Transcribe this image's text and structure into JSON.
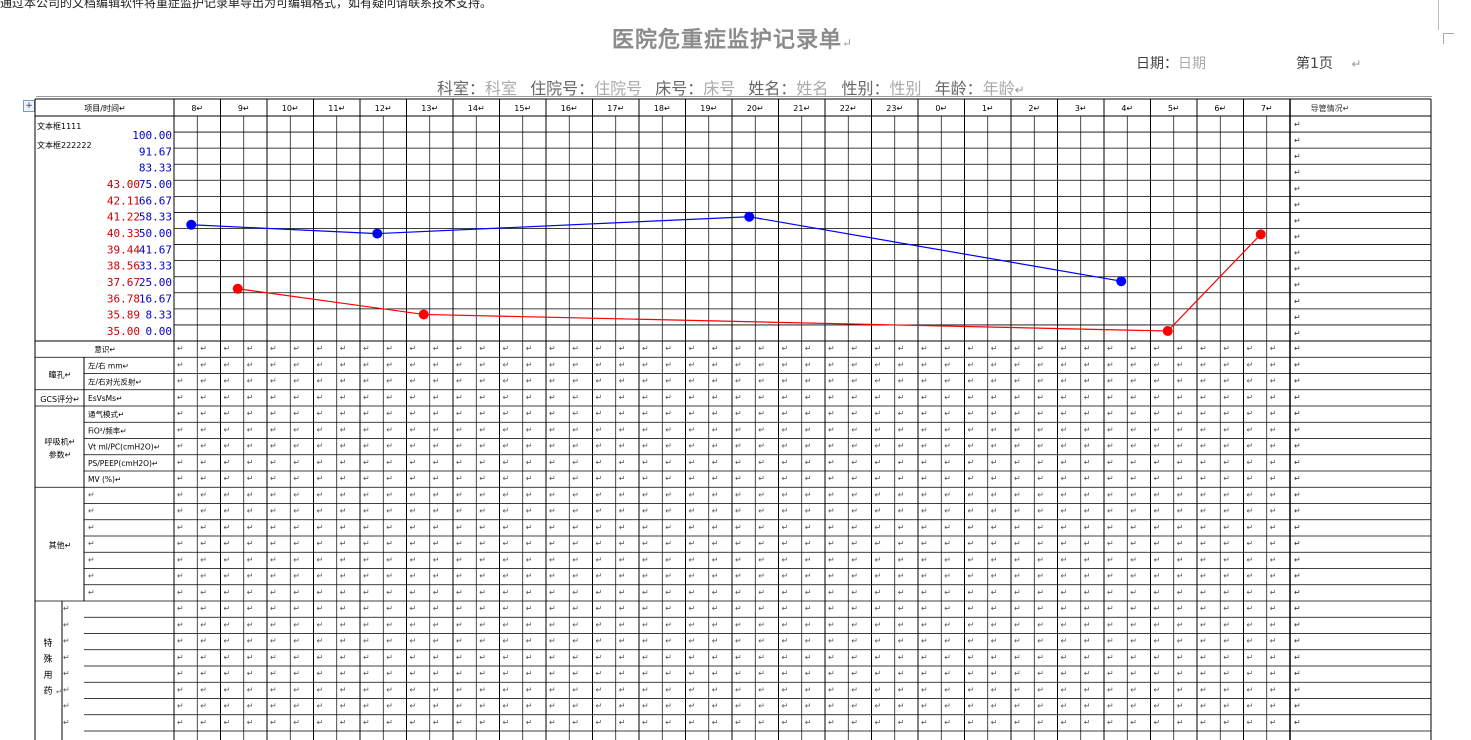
{
  "top_text": "通过本公司的文档编辑软件将重症监护记录单导出为可编辑格式，如有疑问请联系技术支持。",
  "title": "医院危重症监护记录单",
  "header": {
    "date_label": "日期：",
    "date_value": "日期",
    "page_label": "第1页",
    "dept_label": "科室：",
    "dept_value": "科室",
    "inpatient_label": "住院号：",
    "inpatient_value": "住院号",
    "bed_label": "床号：",
    "bed_value": "床号",
    "name_label": "姓名：",
    "name_value": "姓名",
    "gender_label": "性别：",
    "gender_value": "性别",
    "age_label": "年龄：",
    "age_value": "年龄"
  },
  "table": {
    "item_time_label": "项目/时间",
    "hours": [
      "8",
      "9",
      "10",
      "11",
      "12",
      "13",
      "14",
      "15",
      "16",
      "17",
      "18",
      "19",
      "20",
      "21",
      "22",
      "23",
      "0",
      "1",
      "2",
      "3",
      "4",
      "5",
      "6",
      "7"
    ],
    "right_header": "导管情况",
    "textbox1": "文本框1111",
    "textbox2": "文本框222222",
    "scale_blue": [
      "100.00",
      "91.67",
      "83.33",
      "75.00",
      "66.67",
      "58.33",
      "50.00",
      "41.67",
      "33.33",
      "25.00",
      "16.67",
      "8.33",
      "0.00"
    ],
    "scale_red": [
      "",
      "",
      "",
      "43.00",
      "42.11",
      "41.22",
      "40.33",
      "39.44",
      "38.56",
      "37.67",
      "36.78",
      "35.89",
      "35.00"
    ],
    "paragraph_mark": "↵",
    "rows": {
      "consciousness": "意识",
      "pupil": "瞳孔",
      "pupil_size": "左/右 mm",
      "pupil_reflex": "左/右对光反射",
      "gcs": "GCS评分",
      "gcs_detail": "EsVsMs",
      "ventilator": "呼吸机参数",
      "vent_mode": "通气模式",
      "fio2": "FiO²/频率",
      "vt": "Vt ml/PC(cmH2O)",
      "ps": "PS/PEEP(cmH2O)",
      "mv": "MV (%)",
      "other": "其他",
      "special_meds": "特殊用药"
    }
  },
  "chart_data": {
    "type": "line",
    "x": [
      "8",
      "9",
      "10",
      "11",
      "12",
      "13",
      "14",
      "15",
      "16",
      "17",
      "18",
      "19",
      "20",
      "21",
      "22",
      "23",
      "0",
      "1",
      "2",
      "3",
      "4",
      "5",
      "6",
      "7"
    ],
    "blue_scale": [
      0,
      100
    ],
    "red_scale": [
      35,
      43
    ],
    "series": [
      {
        "color": "#0000ff",
        "scale": "blue",
        "points": [
          {
            "x": "8",
            "y": 54.2
          },
          {
            "x": "12",
            "y": 49.7
          },
          {
            "x": "20",
            "y": 58.3
          },
          {
            "x": "4",
            "y": 25.4
          }
        ]
      },
      {
        "color": "#ff0000",
        "scale": "red",
        "points": [
          {
            "x": "9",
            "y": 37.3
          },
          {
            "x": "13",
            "y": 35.9
          },
          {
            "x": "5",
            "y": 35.0
          },
          {
            "x": "7",
            "y": 40.26
          }
        ]
      }
    ]
  }
}
